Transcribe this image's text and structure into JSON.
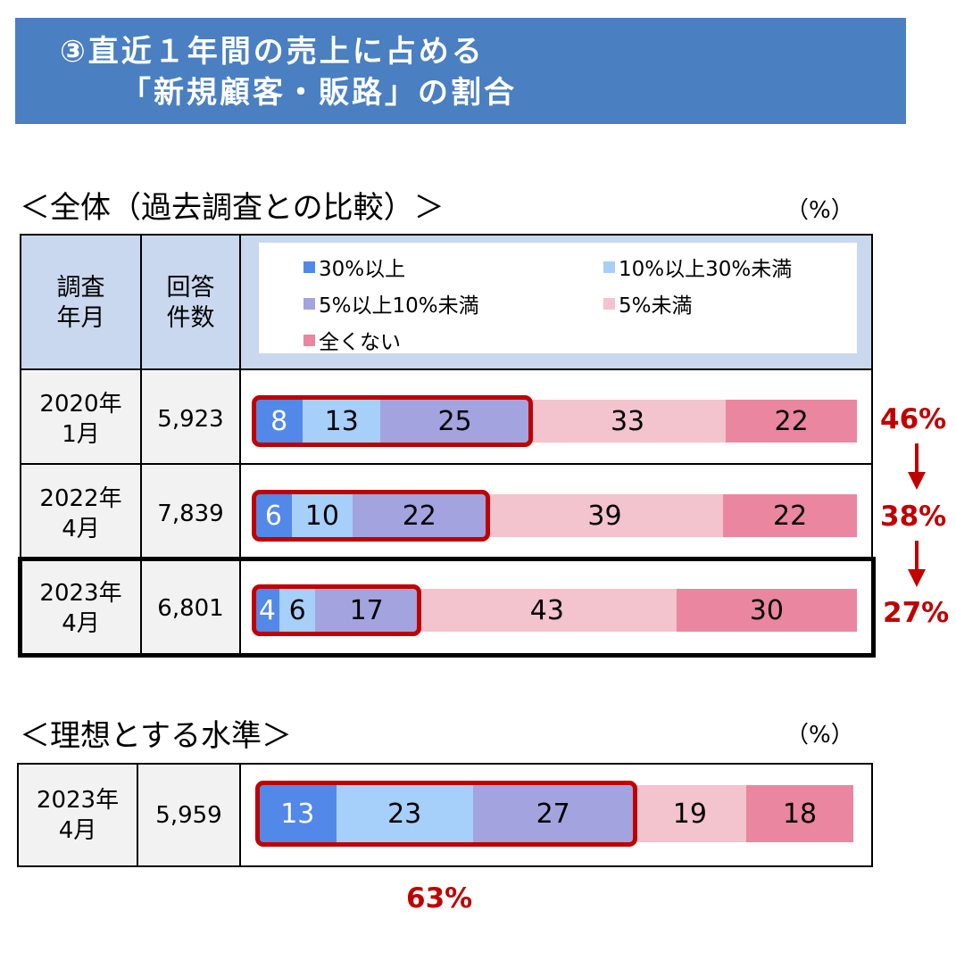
{
  "title": {
    "line1": "③直近１年間の売上に占める",
    "line2": "「新規顧客・販路」の割合"
  },
  "section1": {
    "title": "＜全体（過去調査との比較）＞",
    "unit": "（%）"
  },
  "section2": {
    "title": "＜理想とする水準＞",
    "unit": "（%）"
  },
  "table_header": {
    "date": "調査\n年月",
    "count": "回答\n件数"
  },
  "colors": {
    "banner": "#4a7fc1",
    "header_bg": "#c9d8ee",
    "s1": "#5288e8",
    "s2": "#a6cffa",
    "s3": "#a3a3e0",
    "s4": "#f3c3ce",
    "s5": "#ea869f",
    "highlight": "#c00000"
  },
  "chart_data": [
    {
      "type": "bar",
      "orientation": "horizontal",
      "stacked": true,
      "title": "＜全体（過去調査との比較）＞",
      "unit": "（%）",
      "legend_position": "top",
      "categories": [
        "2020年\n1月",
        "2022年\n4月",
        "2023年\n4月"
      ],
      "counts": [
        "5,923",
        "7,839",
        "6,801"
      ],
      "series": [
        {
          "name": "30%以上",
          "values": [
            8,
            6,
            4
          ]
        },
        {
          "name": "10%以上30%未満",
          "values": [
            13,
            10,
            6
          ]
        },
        {
          "name": "5%以上10%未満",
          "values": [
            25,
            22,
            17
          ]
        },
        {
          "name": "5%未満",
          "values": [
            33,
            39,
            43
          ]
        },
        {
          "name": "全くない",
          "values": [
            22,
            22,
            30
          ]
        }
      ],
      "annotations": [
        "46%",
        "38%",
        "27%"
      ]
    },
    {
      "type": "bar",
      "orientation": "horizontal",
      "stacked": true,
      "title": "＜理想とする水準＞",
      "unit": "（%）",
      "categories": [
        "2023年\n4月"
      ],
      "counts": [
        "5,959"
      ],
      "series": [
        {
          "name": "30%以上",
          "values": [
            13
          ]
        },
        {
          "name": "10%以上30%未満",
          "values": [
            23
          ]
        },
        {
          "name": "5%以上10%未満",
          "values": [
            27
          ]
        },
        {
          "name": "5%未満",
          "values": [
            19
          ]
        },
        {
          "name": "全くない",
          "values": [
            18
          ]
        }
      ],
      "annotations": [
        "63%"
      ]
    }
  ]
}
